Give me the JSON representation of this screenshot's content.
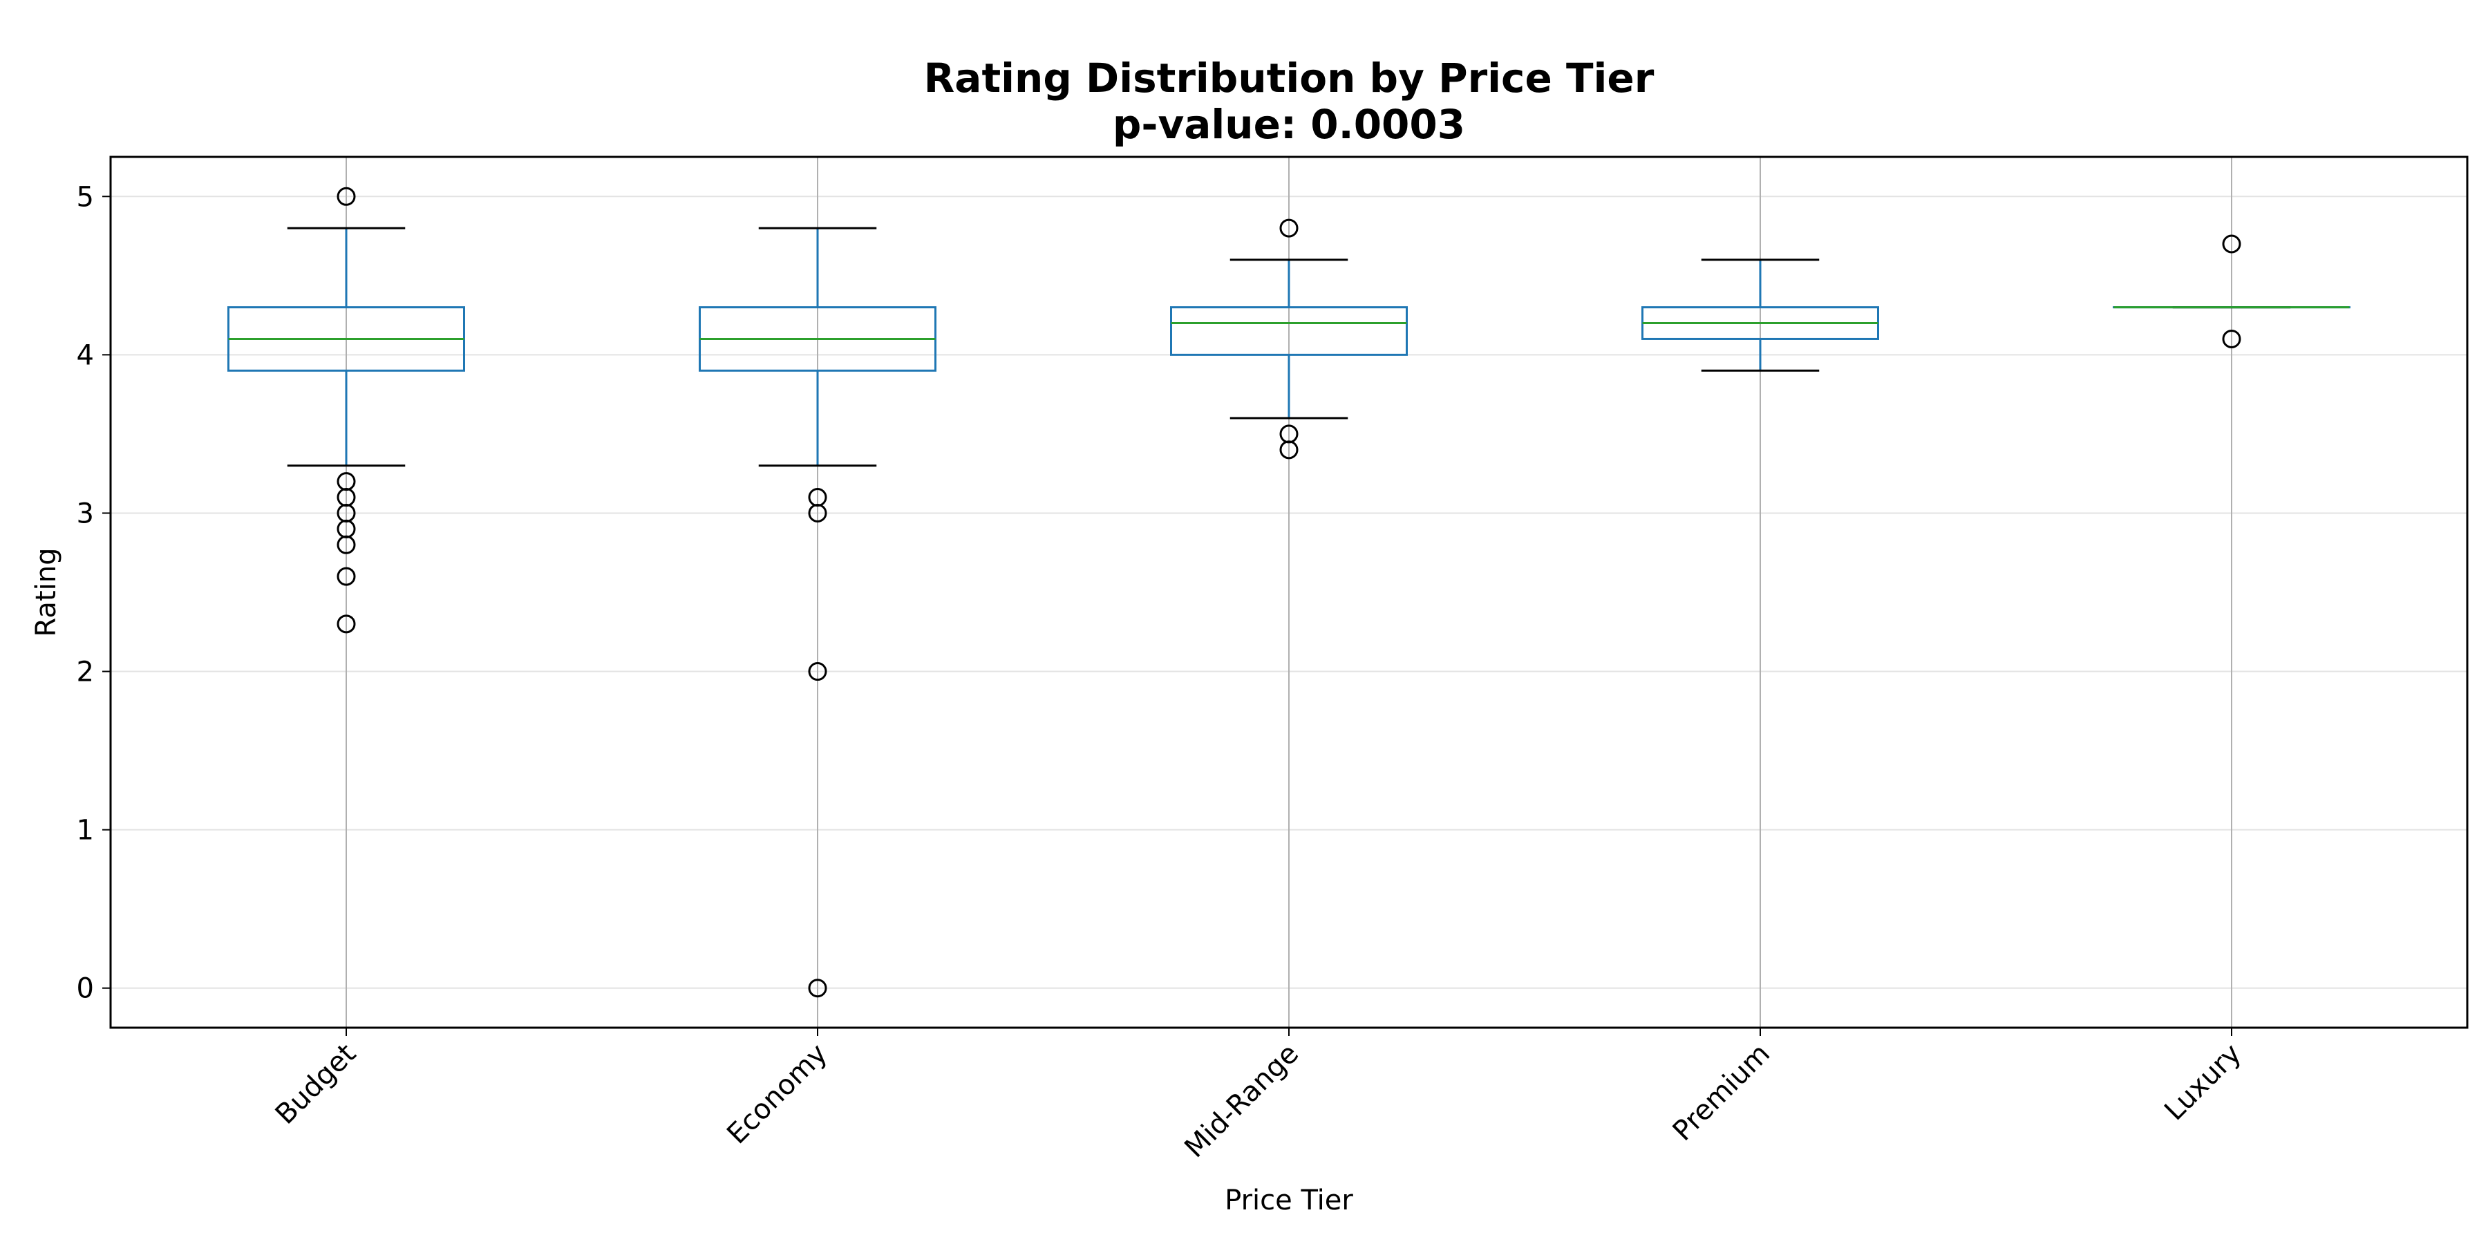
{
  "chart_data": {
    "type": "box",
    "title": "Rating Distribution by Price Tier",
    "subtitle": "p-value: 0.0003",
    "xlabel": "Price Tier",
    "ylabel": "Rating",
    "ylim": [
      -0.25,
      5.25
    ],
    "yticks": [
      0,
      1,
      2,
      3,
      4,
      5
    ],
    "grid": true,
    "categories": [
      "Budget",
      "Economy",
      "Mid-Range",
      "Premium",
      "Luxury"
    ],
    "boxes": [
      {
        "category": "Budget",
        "whisker_low": 3.3,
        "q1": 3.9,
        "median": 4.1,
        "q3": 4.3,
        "whisker_high": 4.8,
        "outliers": [
          5.0,
          3.2,
          3.1,
          3.0,
          2.9,
          2.8,
          2.6,
          2.3
        ]
      },
      {
        "category": "Economy",
        "whisker_low": 3.3,
        "q1": 3.9,
        "median": 4.1,
        "q3": 4.3,
        "whisker_high": 4.8,
        "outliers": [
          3.1,
          3.0,
          2.0,
          0.0
        ]
      },
      {
        "category": "Mid-Range",
        "whisker_low": 3.6,
        "q1": 4.0,
        "median": 4.2,
        "q3": 4.3,
        "whisker_high": 4.6,
        "outliers": [
          4.8,
          3.5,
          3.4
        ]
      },
      {
        "category": "Premium",
        "whisker_low": 3.9,
        "q1": 4.1,
        "median": 4.2,
        "q3": 4.3,
        "whisker_high": 4.6,
        "outliers": []
      },
      {
        "category": "Luxury",
        "whisker_low": 4.3,
        "q1": 4.3,
        "median": 4.3,
        "q3": 4.3,
        "whisker_high": 4.3,
        "outliers": [
          4.7,
          4.1
        ]
      }
    ],
    "colors": {
      "box": "#1f77b4",
      "median": "#2ca02c",
      "cap": "#000000",
      "outlier": "#000000",
      "grid": "#b0b0b0"
    }
  }
}
